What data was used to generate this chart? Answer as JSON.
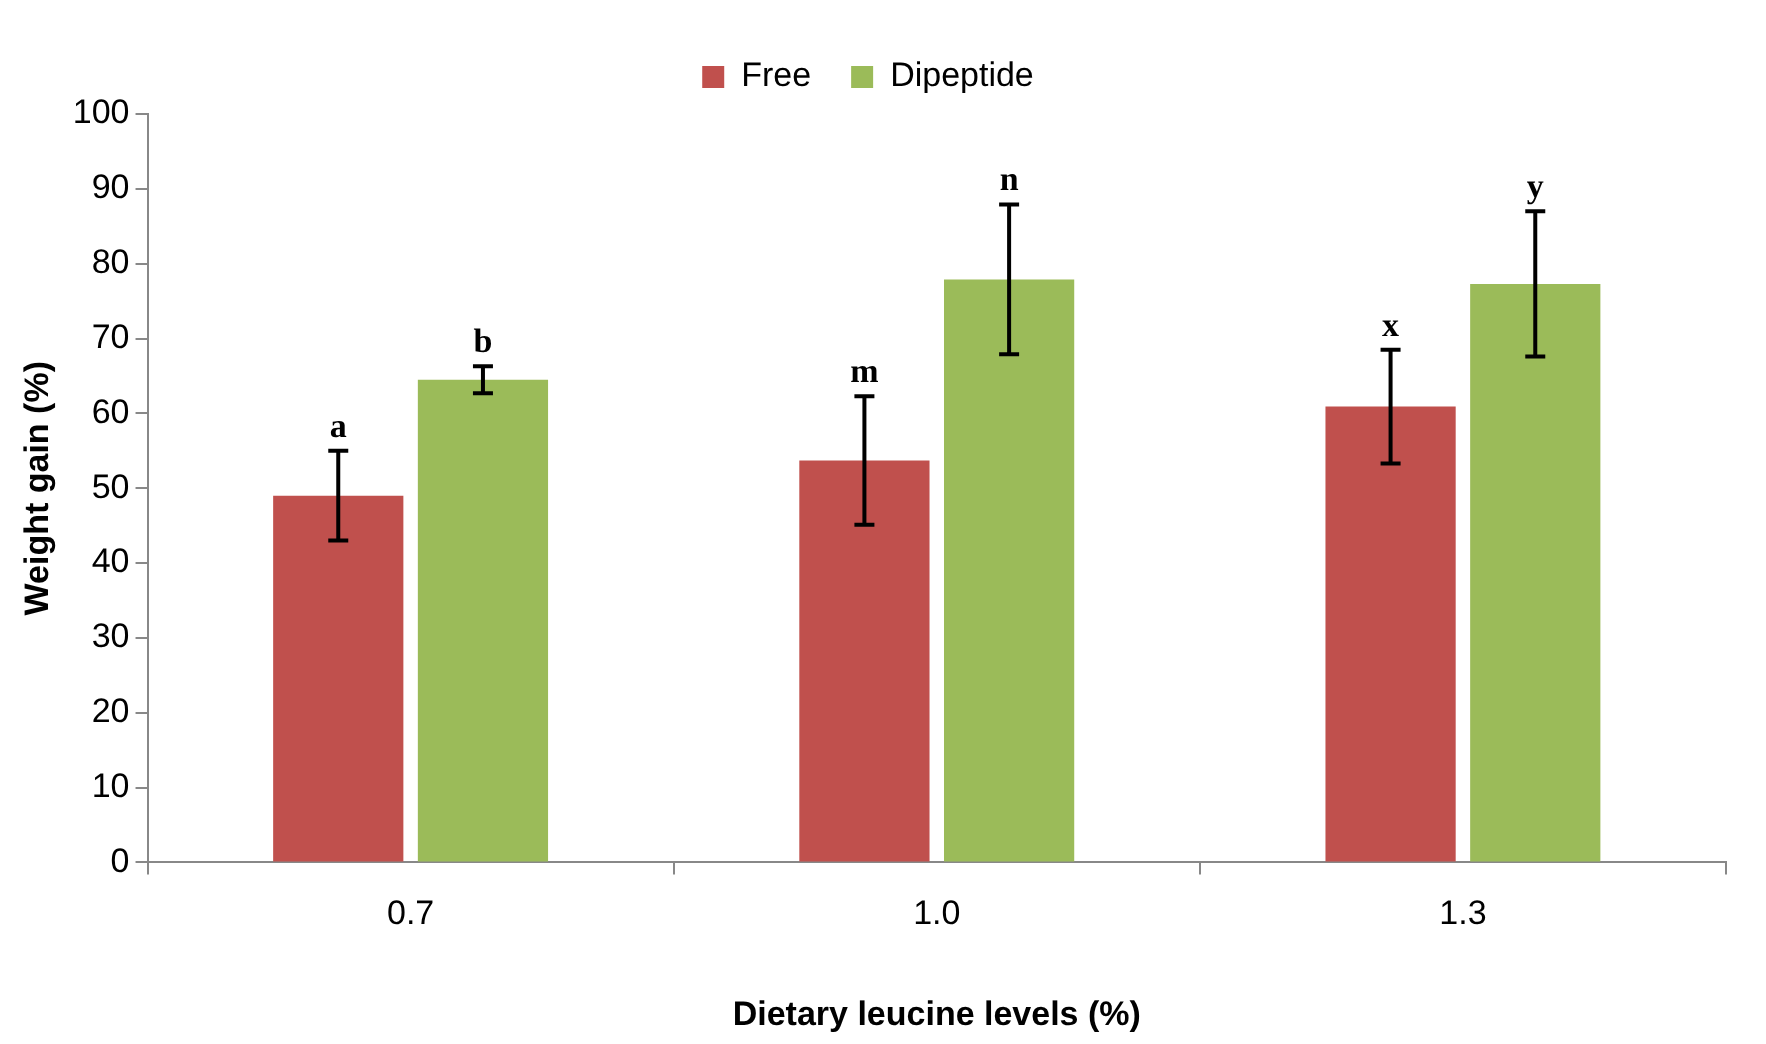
{
  "chart_data": {
    "type": "bar",
    "xlabel": "Dietary leucine levels (%)",
    "ylabel": "Weight gain (%)",
    "categories": [
      "0.7",
      "1.0",
      "1.3"
    ],
    "series": [
      {
        "name": "Free",
        "color": "#c0504d",
        "values": [
          49,
          53.7,
          60.9
        ],
        "errors": [
          6,
          8.6,
          7.6
        ]
      },
      {
        "name": "Dipeptide",
        "color": "#9bbb59",
        "values": [
          64.5,
          77.9,
          77.3
        ],
        "errors": [
          1.8,
          10,
          9.7
        ]
      }
    ],
    "ylim": [
      0,
      100
    ],
    "yticks": [
      0,
      10,
      20,
      30,
      40,
      50,
      60,
      70,
      80,
      90,
      100
    ],
    "grid": false,
    "legend": "top",
    "annotations": [
      "a",
      "b",
      "m",
      "n",
      "x",
      "y"
    ]
  }
}
